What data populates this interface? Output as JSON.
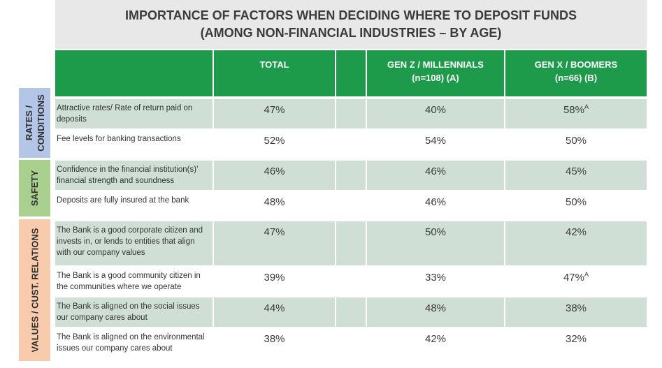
{
  "title": {
    "line1": "IMPORTANCE OF FACTORS WHEN DECIDING WHERE TO DEPOSIT FUNDS",
    "line2": "(AMONG NON-FINANCIAL INDUSTRIES – BY AGE)"
  },
  "columns": [
    {
      "line1": "TOTAL",
      "line2": ""
    },
    {
      "line1": "GEN Z / MILLENNIALS",
      "line2": "(n=108) (A)"
    },
    {
      "line1": "GEN X / BOOMERS",
      "line2": "(n=66) (B)"
    }
  ],
  "categories": [
    {
      "label_lines": [
        "RATES /",
        "CONDITIONS"
      ],
      "color": "#b4c6e7"
    },
    {
      "label_lines": [
        "SAFETY"
      ],
      "color": "#a9d08e"
    },
    {
      "label_lines": [
        "VALUES / CUST. RELATIONS"
      ],
      "color": "#f8cbad"
    }
  ],
  "colors": {
    "header_green": "#1e9a4b",
    "row_shade": "#cfdfd5",
    "title_bg": "#e8e8e8"
  },
  "chart_data": {
    "type": "table",
    "title": "IMPORTANCE OF FACTORS WHEN DECIDING WHERE TO DEPOSIT FUNDS (AMONG NON-FINANCIAL INDUSTRIES – BY AGE)",
    "columns": [
      "TOTAL",
      "GEN Z / MILLENNIALS (n=108) (A)",
      "GEN X / BOOMERS (n=66) (B)"
    ],
    "rows": [
      {
        "category": "RATES / CONDITIONS",
        "statement": "Attractive rates/ Rate of return paid on deposits",
        "values": [
          "47%",
          "40%",
          "58%"
        ],
        "superscripts": [
          "",
          "",
          "A"
        ]
      },
      {
        "category": "RATES / CONDITIONS",
        "statement": "Fee levels for banking transactions",
        "values": [
          "52%",
          "54%",
          "50%"
        ],
        "superscripts": [
          "",
          "",
          ""
        ]
      },
      {
        "category": "SAFETY",
        "statement": "Confidence in the financial institution(s)’ financial strength and soundness",
        "values": [
          "46%",
          "46%",
          "45%"
        ],
        "superscripts": [
          "",
          "",
          ""
        ]
      },
      {
        "category": "SAFETY",
        "statement": "Deposits are fully insured at the bank",
        "values": [
          "48%",
          "46%",
          "50%"
        ],
        "superscripts": [
          "",
          "",
          ""
        ]
      },
      {
        "category": "VALUES / CUST. RELATIONS",
        "statement": "The Bank is a good corporate citizen and invests in, or lends to entities that align with our company values",
        "values": [
          "47%",
          "50%",
          "42%"
        ],
        "superscripts": [
          "",
          "",
          ""
        ]
      },
      {
        "category": "VALUES / CUST. RELATIONS",
        "statement": "The Bank is a good community citizen in the communities where we operate",
        "values": [
          "39%",
          "33%",
          "47%"
        ],
        "superscripts": [
          "",
          "",
          "A"
        ]
      },
      {
        "category": "VALUES / CUST. RELATIONS",
        "statement": "The Bank is aligned on the social issues our company cares about",
        "values": [
          "44%",
          "48%",
          "38%"
        ],
        "superscripts": [
          "",
          "",
          ""
        ]
      },
      {
        "category": "VALUES / CUST. RELATIONS",
        "statement": "The Bank is aligned on the environmental issues our company cares about",
        "values": [
          "38%",
          "42%",
          "32%"
        ],
        "superscripts": [
          "",
          "",
          ""
        ]
      }
    ]
  }
}
